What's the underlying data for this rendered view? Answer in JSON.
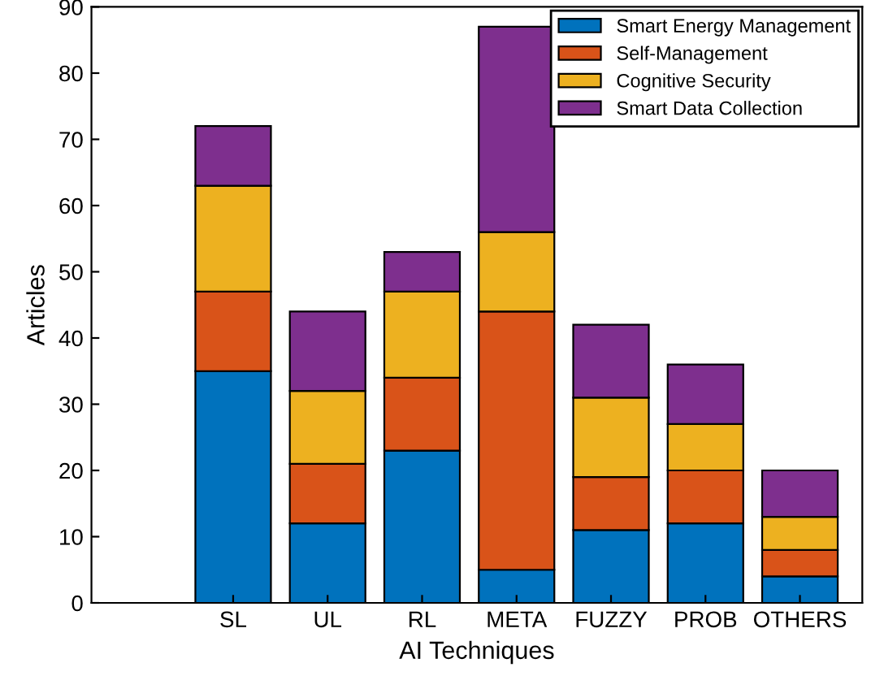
{
  "chart_data": {
    "type": "bar",
    "stacked": true,
    "xlabel": "AI Techniques",
    "ylabel": "Articles",
    "categories": [
      "SL",
      "UL",
      "RL",
      "META",
      "FUZZY",
      "PROB",
      "OTHERS"
    ],
    "series": [
      {
        "name": "Smart Energy Management",
        "color": "#0072bd",
        "values": [
          35,
          12,
          23,
          5,
          11,
          12,
          4
        ]
      },
      {
        "name": "Self-Management",
        "color": "#d95319",
        "values": [
          12,
          9,
          11,
          39,
          8,
          8,
          4
        ]
      },
      {
        "name": "Cognitive Security",
        "color": "#edb120",
        "values": [
          16,
          11,
          13,
          12,
          12,
          7,
          5
        ]
      },
      {
        "name": "Smart Data Collection",
        "color": "#7e2f8e",
        "values": [
          9,
          12,
          6,
          31,
          11,
          9,
          7
        ]
      }
    ],
    "ylim": [
      0,
      90
    ],
    "yticks": [
      0,
      10,
      20,
      30,
      40,
      50,
      60,
      70,
      80,
      90
    ],
    "grid": false,
    "legend": "top right"
  }
}
